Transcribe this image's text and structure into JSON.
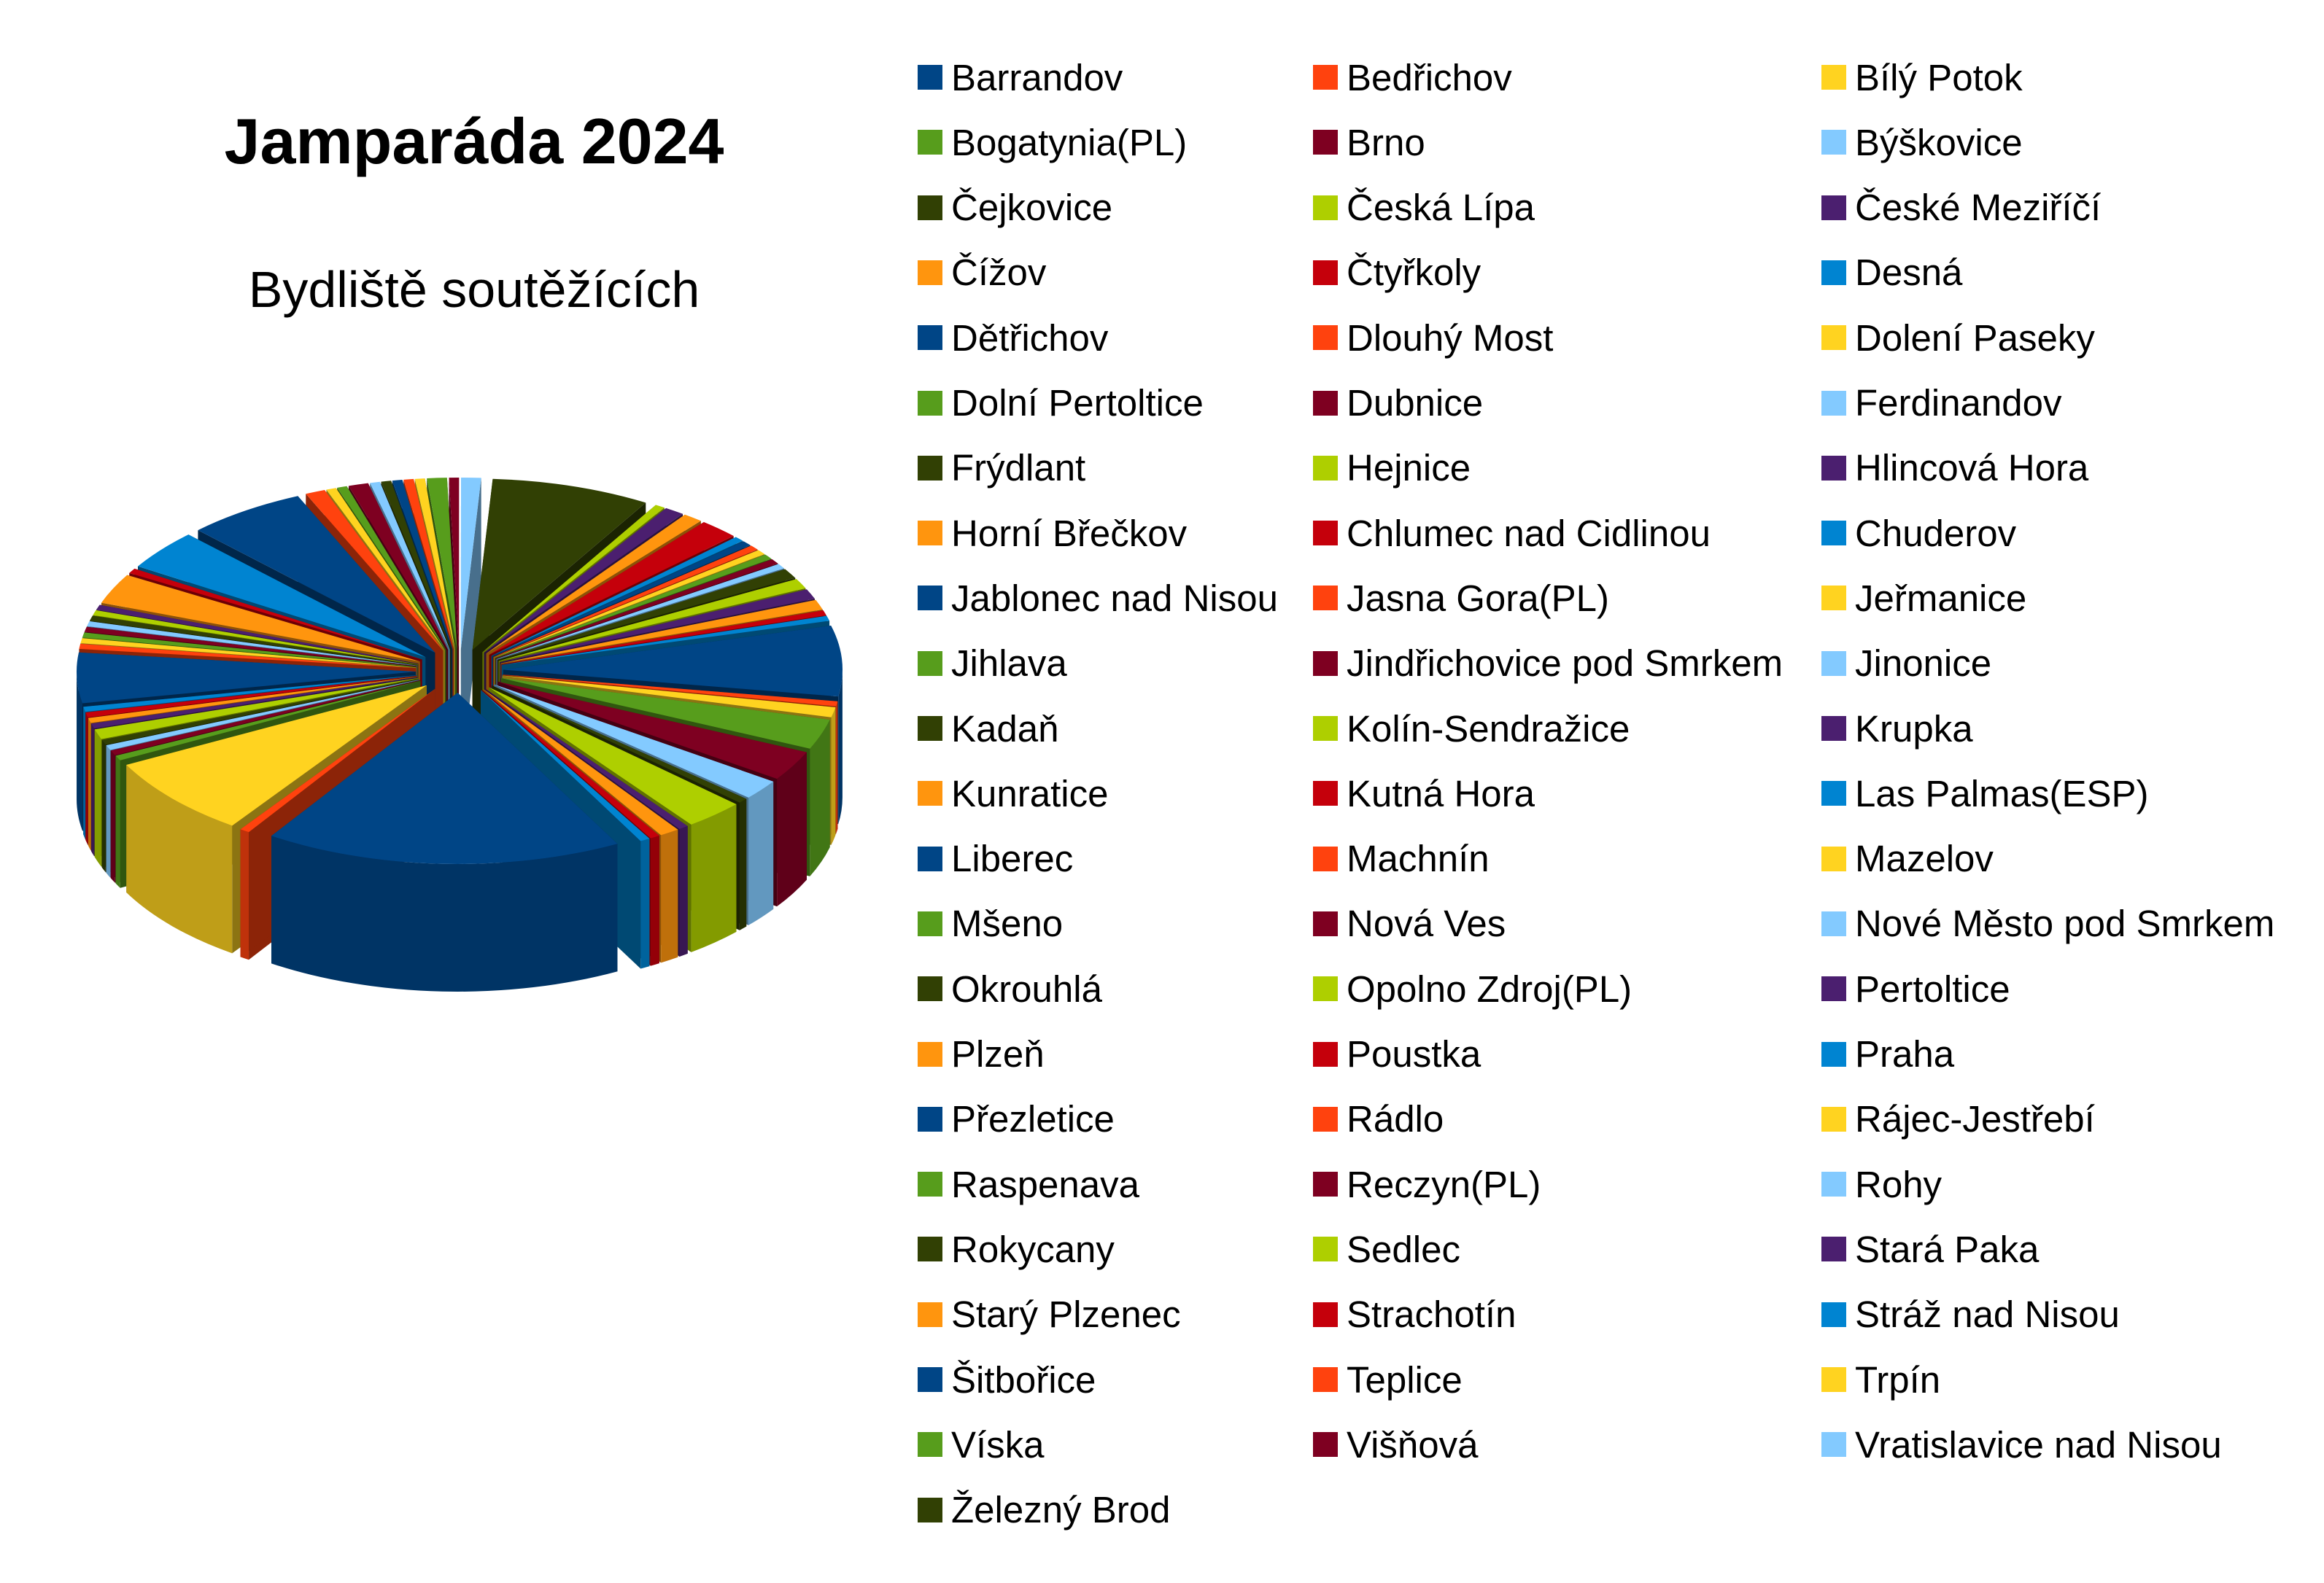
{
  "chart_data": {
    "type": "pie",
    "title": "Jamparáda 2024",
    "subtitle": "Bydliště soutěžících",
    "legend_position": "right",
    "palette": [
      "#004586",
      "#ff420e",
      "#ffd320",
      "#579d1c",
      "#7e0021",
      "#83caff",
      "#314004",
      "#aecf00",
      "#4b1f6f",
      "#ff950e",
      "#c5000b",
      "#0084d1"
    ],
    "labels": [
      "Barrandov",
      "Bedřichov",
      "Bílý Potok",
      "Bogatynia(PL)",
      "Brno",
      "Býškovice",
      "Čejkovice",
      "Česká Lípa",
      "České Meziříčí",
      "Čížov",
      "Čtyřkoly",
      "Desná",
      "Dětřichov",
      "Dlouhý Most",
      "Dolení Paseky",
      "Dolní Pertoltice",
      "Dubnice",
      "Ferdinandov",
      "Frýdlant",
      "Hejnice",
      "Hlincová Hora",
      "Horní Břečkov",
      "Chlumec nad Cidlinou",
      "Chuderov",
      "Jablonec nad Nisou",
      "Jasna Gora(PL)",
      "Jeřmanice",
      "Jihlava",
      "Jindřichovice pod Smrkem",
      "Jinonice",
      "Kadaň",
      "Kolín-Sendražice",
      "Krupka",
      "Kunratice",
      "Kutná Hora",
      "Las Palmas(ESP)",
      "Liberec",
      "Machnín",
      "Mazelov",
      "Mšeno",
      "Nová Ves",
      "Nové Město pod Smrkem",
      "Okrouhlá",
      "Opolno Zdroj(PL)",
      "Pertoltice",
      "Plzeň",
      "Poustka",
      "Praha",
      "Přezletice",
      "Rádlo",
      "Rájec-Jestřebí",
      "Raspenava",
      "Reczyn(PL)",
      "Rohy",
      "Rokycany",
      "Sedlec",
      "Stará Paka",
      "Starý Plzenec",
      "Strachotín",
      "Stráž nad Nisou",
      "Šitbořice",
      "Teplice",
      "Trpín",
      "Víska",
      "Višňová",
      "Vratislavice nad Nisou",
      "Železný Brod"
    ],
    "values": [
      0.5,
      0.5,
      0.5,
      1,
      0.5,
      1,
      8,
      0.5,
      1,
      1,
      2,
      0.5,
      0.5,
      0.5,
      0.5,
      0.5,
      0.5,
      0.5,
      1,
      1,
      1,
      1,
      0.5,
      0.5,
      7,
      0.5,
      1,
      3,
      3,
      2,
      0.5,
      3,
      0.5,
      1,
      0.5,
      0.5,
      18,
      0.5,
      8,
      0.5,
      0.5,
      0.5,
      0.5,
      1,
      0.5,
      0.5,
      0.5,
      0.5,
      5,
      0.5,
      0.5,
      0.5,
      0.5,
      0.5,
      0.5,
      0.5,
      0.5,
      3,
      0.5,
      4,
      6,
      1,
      0.5,
      0.5,
      1,
      0.5,
      0.5
    ],
    "start_category": "Čejkovice"
  }
}
